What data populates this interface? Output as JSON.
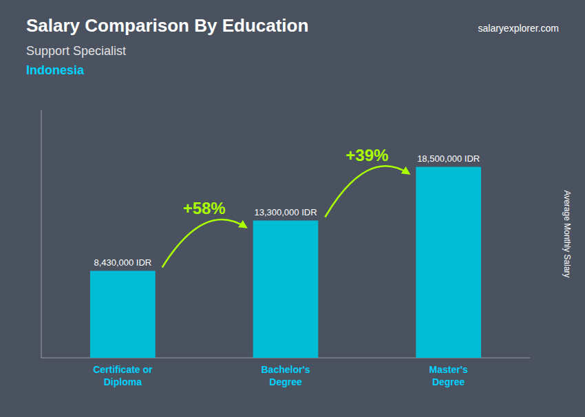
{
  "chart_data": {
    "type": "bar",
    "title": "Salary Comparison By Education",
    "subtitle": "Support Specialist",
    "annotations": [
      "Indonesia",
      "salaryexplorer.com",
      "+58%",
      "+39%"
    ],
    "ylabel": "Average Monthly Salary",
    "categories": [
      "Certificate or\nDiploma",
      "Bachelor's\nDegree",
      "Master's\nDegree"
    ],
    "values": [
      8430000,
      13300000,
      18500000
    ],
    "value_labels": [
      "8,430,000 IDR",
      "13,300,000 IDR",
      "18,500,000 IDR"
    ],
    "data_labels": true,
    "color": "#00bcd4",
    "ylim": [
      0,
      24000000
    ],
    "tick_labels": "x",
    "grid": false
  }
}
